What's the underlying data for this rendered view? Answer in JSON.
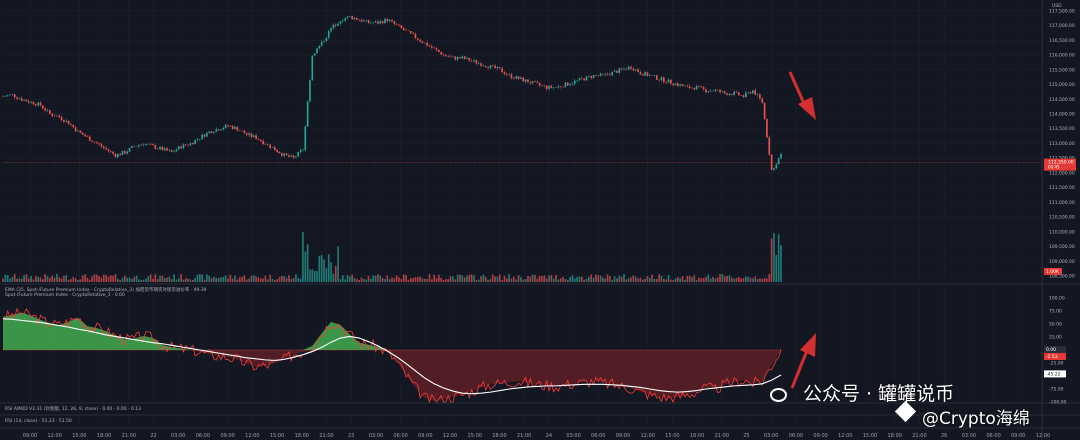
{
  "chart_data": {
    "type": "candlestick",
    "currency": "USD",
    "price_axis_ticks": [
      "117,500.00",
      "117,000.00",
      "116,500.00",
      "116,000.00",
      "115,500.00",
      "115,000.00",
      "114,500.00",
      "114,000.00",
      "113,500.00",
      "113,000.00",
      "112,500.00",
      "112,000.00",
      "111,500.00",
      "111,000.00",
      "110,500.00",
      "110,000.00",
      "109,500.00",
      "109,000.00",
      "108,500.00"
    ],
    "price_ylim": [
      108300,
      117800
    ],
    "last_price_badge": "112,350.00",
    "last_price_sub": "00:45",
    "red_badge": "1.00K",
    "price_series": [
      114600,
      114650,
      114500,
      114400,
      114300,
      114000,
      113900,
      113700,
      113400,
      113200,
      113000,
      112800,
      112600,
      112700,
      112900,
      113000,
      112900,
      112800,
      112700,
      112900,
      113000,
      113200,
      113400,
      113500,
      113600,
      113500,
      113300,
      113200,
      113000,
      112800,
      112600,
      112500,
      112800,
      116000,
      116400,
      116900,
      117200,
      117300,
      117200,
      117100,
      117100,
      117200,
      117000,
      116800,
      116600,
      116400,
      116200,
      116000,
      115900,
      115900,
      115800,
      115700,
      115600,
      115500,
      115300,
      115200,
      115100,
      115000,
      114900,
      114900,
      115000,
      115100,
      115200,
      115300,
      115300,
      115400,
      115500,
      115600,
      115400,
      115300,
      115200,
      115100,
      115000,
      114900,
      114900,
      114800,
      114800,
      114700,
      114700,
      114600,
      114800,
      114400,
      112100,
      112600
    ],
    "legends": {
      "ema": "EMA (35, Spot-/Future Premium Index · CryptoRelative_3) 加密货币期货对现货溢价率 · 49.39",
      "spot": "Spot-/Future Premium Index · CryptoRelative_3 · 0.00",
      "rsi_mod": "RSI AMOD V2.31 (封装版, 12, 26, 9, close) · 0.00 · 0.00 · 0.13",
      "rsi": "RSI (14, close) · 51.23 · 51.50"
    },
    "indicator_axis_ticks": [
      "100.00",
      "75.00",
      "50.00",
      "25.00",
      "0.00",
      "-25.00",
      "-50.00",
      "-75.00",
      "-100.00"
    ],
    "indicator_ylim": [
      -100,
      100
    ],
    "indicator_badges": [
      "0.00",
      "-2.53",
      "-45.22"
    ],
    "premium_series": [
      64,
      67,
      72,
      66,
      58,
      52,
      48,
      54,
      62,
      46,
      42,
      36,
      27,
      20,
      22,
      27,
      23,
      10,
      5,
      3,
      0,
      -4,
      -8,
      -12,
      -14,
      -18,
      -26,
      -32,
      -30,
      -26,
      -18,
      -8,
      -4,
      8,
      32,
      54,
      48,
      30,
      14,
      10,
      6,
      -4,
      -22,
      -48,
      -72,
      -92,
      -98,
      -95,
      -90,
      -86,
      -80,
      -72,
      -66,
      -64,
      -62,
      -60,
      -63,
      -66,
      -68,
      -70,
      -67,
      -64,
      -62,
      -60,
      -63,
      -66,
      -70,
      -74,
      -80,
      -86,
      -90,
      -92,
      -90,
      -86,
      -80,
      -72,
      -76,
      -66,
      -62,
      -58,
      -64,
      -60,
      -30,
      0
    ],
    "ema_series": [
      60,
      59,
      57,
      55,
      53,
      50,
      47,
      44,
      40,
      37,
      33,
      29,
      26,
      23,
      20,
      17,
      14,
      12,
      9,
      6,
      3,
      0,
      -3,
      -6,
      -9,
      -12,
      -15,
      -17,
      -19,
      -20,
      -18,
      -14,
      -9,
      -3,
      5,
      15,
      23,
      26,
      23,
      16,
      8,
      -2,
      -13,
      -26,
      -40,
      -54,
      -65,
      -73,
      -79,
      -83,
      -84,
      -83,
      -81,
      -78,
      -75,
      -73,
      -71,
      -70,
      -69,
      -69,
      -68,
      -67,
      -66,
      -66,
      -66,
      -67,
      -68,
      -70,
      -72,
      -75,
      -78,
      -80,
      -81,
      -80,
      -78,
      -75,
      -73,
      -71,
      -69,
      -68,
      -67,
      -65,
      -58,
      -48
    ],
    "time_axis_labels": [
      "09:00",
      "12:00",
      "15:00",
      "18:00",
      "21:00",
      "22",
      "03:00",
      "06:00",
      "09:00",
      "12:00",
      "15:00",
      "18:00",
      "21:00",
      "23",
      "03:00",
      "06:00",
      "09:00",
      "12:00",
      "15:00",
      "18:00",
      "21:00",
      "24",
      "03:00",
      "06:00",
      "09:00",
      "12:00",
      "15:00",
      "18:00",
      "21:00",
      "25",
      "03:00",
      "06:00",
      "09:00",
      "12:00",
      "15:00",
      "18:00",
      "21:00",
      "26",
      "03:00",
      "06:00",
      "09:00",
      "12:00"
    ],
    "grid": true
  },
  "watermark": {
    "line1": "公众号 · 罐罐说币",
    "line2": "@Crypto海绵"
  }
}
